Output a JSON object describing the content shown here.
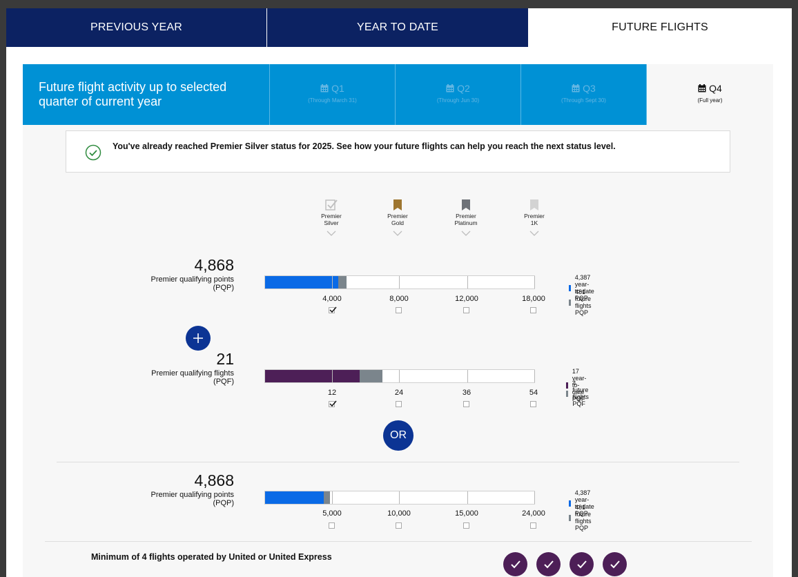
{
  "tabs": {
    "previous_year": "PREVIOUS YEAR",
    "year_to_date": "YEAR TO DATE",
    "future_flights": "FUTURE FLIGHTS"
  },
  "quarter_selector": {
    "description": "Future flight activity up to selected quarter of current year",
    "quarters": [
      {
        "label": "Q1",
        "sub": "(Through March 31)"
      },
      {
        "label": "Q2",
        "sub": "(Through Jun 30)"
      },
      {
        "label": "Q3",
        "sub": "(Through Sept 30)"
      },
      {
        "label": "Q4",
        "sub": "(Full year)"
      }
    ],
    "selected": "Q4"
  },
  "notice": {
    "text": "You've already reached Premier Silver status for 2025. See how your future flights can help you reach the next status level."
  },
  "levels": [
    {
      "name": "Premier",
      "tier": "Silver",
      "icon": "check-flag-icon",
      "color": "#bfbfbf"
    },
    {
      "name": "Premier",
      "tier": "Gold",
      "icon": "bookmark-icon",
      "color": "#9e7630"
    },
    {
      "name": "Premier",
      "tier": "Platinum",
      "icon": "bookmark-icon",
      "color": "#6e7278"
    },
    {
      "name": "Premier",
      "tier": "1K",
      "icon": "bookmark-icon",
      "color": "#d3d3d3"
    }
  ],
  "pqp": {
    "value": "4,868",
    "label_line1": "Premier qualifying points",
    "label_line2": "(PQP)",
    "ytd": 4387,
    "future": 481,
    "max": 18000,
    "ticks": [
      "4,000",
      "8,000",
      "12,000",
      "18,000"
    ],
    "checked": [
      true,
      false,
      false,
      false
    ],
    "legend": [
      "4,387 year-to-date PQP",
      "481 future flights PQP"
    ]
  },
  "pqf": {
    "value": "21",
    "label_line1": "Premier qualifying flights",
    "label_line2": "(PQF)",
    "ytd": 17,
    "future": 4,
    "max": 54,
    "ticks": [
      "12",
      "24",
      "36",
      "54"
    ],
    "checked": [
      true,
      false,
      false,
      false
    ],
    "legend": [
      "17 year-to-date PQF",
      "4 future flights PQF"
    ]
  },
  "or_label": "OR",
  "pqp_only": {
    "value": "4,868",
    "label_line1": "Premier qualifying points",
    "label_line2": "(PQP)",
    "ytd": 4387,
    "future": 481,
    "max": 24000,
    "ticks": [
      "5,000",
      "10,000",
      "15,000",
      "24,000"
    ],
    "checked": [
      false,
      false,
      false,
      false
    ],
    "legend": [
      "4,387 year-to-date PQP",
      "481 future flights PQP"
    ]
  },
  "minimum_flights": {
    "text": "Minimum of 4 flights operated by United or United Express",
    "completed": 4
  },
  "colors": {
    "navy": "#0c2262",
    "blue_accent": "#0091d5",
    "pqp_bar": "#0a6ae6",
    "pqf_bar": "#4d1f57",
    "future_bar": "#7b858c",
    "circle_btn": "#0c3494"
  }
}
